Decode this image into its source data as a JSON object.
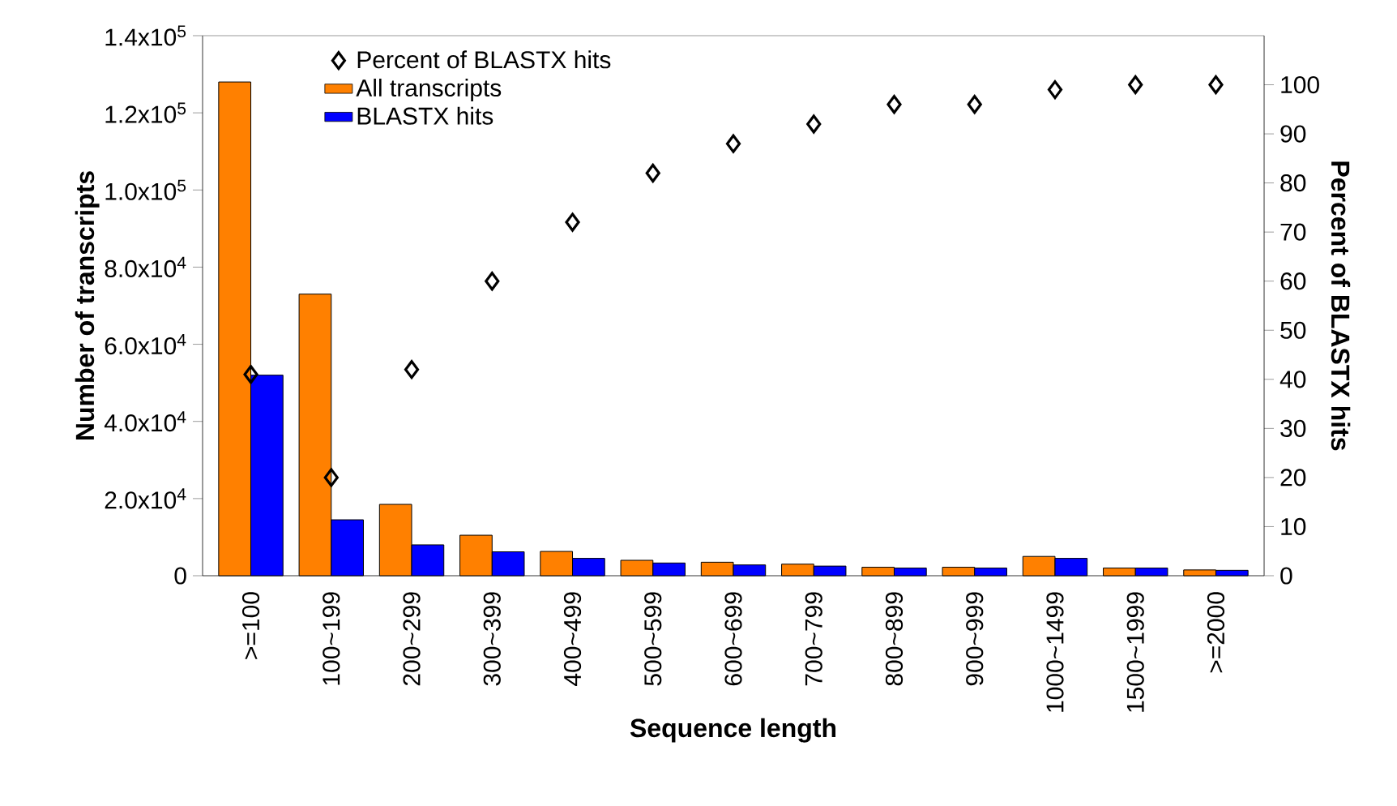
{
  "chart_data": {
    "type": "bar",
    "xlabel": "Sequence length",
    "ylabel": "Number of transcripts",
    "y2label": "Percent of BLASTX hits",
    "categories": [
      ">=100",
      "100~199",
      "200~299",
      "300~399",
      "400~499",
      "500~599",
      "600~699",
      "700~799",
      "800~899",
      "900~999",
      "1000~1499",
      "1500~1999",
      ">=2000"
    ],
    "series": [
      {
        "name": "Percent of BLASTX hits",
        "type": "scatter",
        "axis": "y2",
        "color": "#000000",
        "values": [
          41,
          20,
          42,
          60,
          72,
          82,
          88,
          92,
          96,
          96,
          99,
          100,
          100
        ]
      },
      {
        "name": "All transcripts",
        "color": "#ff8000",
        "values": [
          128000,
          73000,
          18500,
          10500,
          6300,
          4000,
          3500,
          3000,
          2200,
          2200,
          5000,
          2000,
          1500
        ]
      },
      {
        "name": "BLASTX hits",
        "color": "#0000ff",
        "values": [
          52000,
          14500,
          8000,
          6200,
          4500,
          3300,
          2800,
          2500,
          2000,
          2000,
          4500,
          2000,
          1400
        ]
      }
    ],
    "ylim": [
      0,
      140000
    ],
    "yticks": [
      {
        "value": 0,
        "label": "0"
      },
      {
        "value": 20000,
        "label": "2.0x10$^{4}$"
      },
      {
        "value": 40000,
        "label": "4.0x10$^{4}$"
      },
      {
        "value": 60000,
        "label": "6.0x10$^{4}$"
      },
      {
        "value": 80000,
        "label": "8.0x10$^{4}$"
      },
      {
        "value": 100000,
        "label": "1.0x10$^{5}$"
      },
      {
        "value": 120000,
        "label": "1.2x10$^{5}$"
      },
      {
        "value": 140000,
        "label": "1.4x10$^{5}$"
      }
    ],
    "y2lim": [
      0,
      110
    ],
    "y2ticks": [
      0,
      10,
      20,
      30,
      40,
      50,
      60,
      70,
      80,
      90,
      100
    ],
    "marker": "diamond",
    "legend": "top left"
  }
}
